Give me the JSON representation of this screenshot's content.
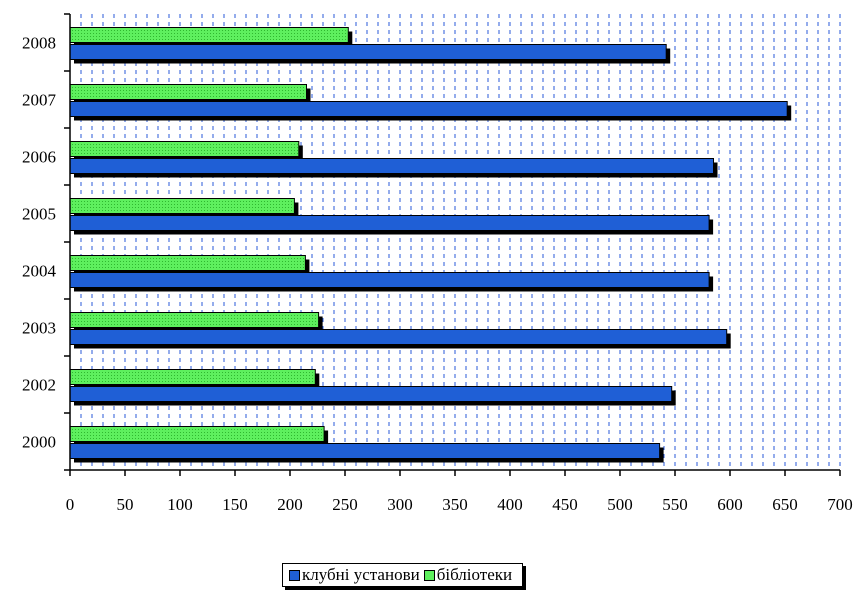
{
  "chart_data": {
    "type": "bar",
    "orientation": "horizontal",
    "categories": [
      "2008",
      "2007",
      "2006",
      "2005",
      "2004",
      "2003",
      "2002",
      "2000"
    ],
    "series": [
      {
        "name": "клубні установи",
        "color": "#1f5fd6",
        "values": [
          542,
          652,
          585,
          581,
          581,
          597,
          547,
          536
        ]
      },
      {
        "name": "бібліотеки",
        "color": "#55ee55",
        "values": [
          253,
          215,
          208,
          204,
          214,
          226,
          223,
          231
        ]
      }
    ],
    "xticks": [
      "0",
      "50",
      "100",
      "150",
      "200",
      "250",
      "300",
      "350",
      "400",
      "450",
      "500",
      "550",
      "600",
      "650",
      "700"
    ],
    "xlim": [
      0,
      700
    ],
    "grid": "vertical dashed",
    "legend_position": "bottom"
  }
}
